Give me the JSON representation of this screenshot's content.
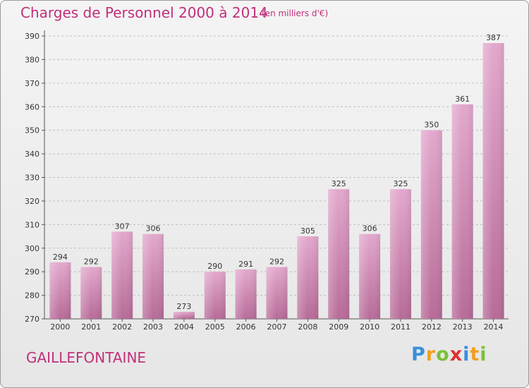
{
  "title": "Charges de Personnel 2000 à 2014",
  "subtitle": "(en milliers d'€)",
  "commune": "GAILLEFONTAINE",
  "logo": {
    "text": "Proxiti",
    "letters": [
      {
        "char": "P",
        "color": "#3a8fd8"
      },
      {
        "char": "r",
        "color": "#f0a020"
      },
      {
        "char": "o",
        "color": "#7cc03a"
      },
      {
        "char": "x",
        "color": "#e03030"
      },
      {
        "char": "i",
        "color": "#3a8fd8"
      },
      {
        "char": "t",
        "color": "#f0a020"
      },
      {
        "char": "i",
        "color": "#7cc03a"
      }
    ]
  },
  "colors": {
    "title": "#c0307a",
    "bar_top": "#e3a8cd",
    "bar_bottom": "#b76b98",
    "grid": "#bfbfbf"
  },
  "chart_data": {
    "type": "bar",
    "title": "Charges de Personnel 2000 à 2014",
    "subtitle": "(en milliers d'€)",
    "xlabel": "",
    "ylabel": "",
    "ylim": [
      270,
      390
    ],
    "yticks": [
      270,
      280,
      290,
      300,
      310,
      320,
      330,
      340,
      350,
      360,
      370,
      380,
      390
    ],
    "grid": true,
    "categories": [
      "2000",
      "2001",
      "2002",
      "2003",
      "2004",
      "2005",
      "2006",
      "2007",
      "2008",
      "2009",
      "2010",
      "2011",
      "2012",
      "2013",
      "2014"
    ],
    "values": [
      294,
      292,
      307,
      306,
      273,
      290,
      291,
      292,
      305,
      325,
      306,
      325,
      350,
      361,
      387
    ]
  }
}
